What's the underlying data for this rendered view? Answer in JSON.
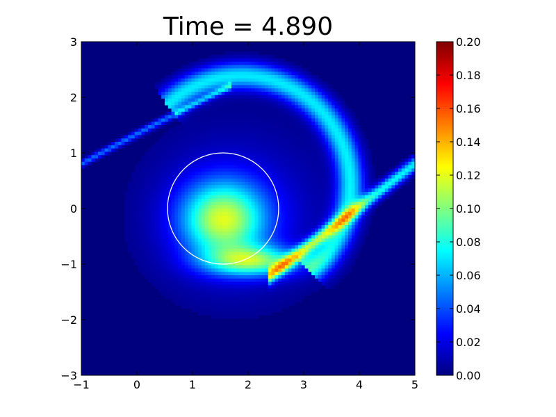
{
  "chart_data": {
    "type": "heatmap",
    "title": "Time = 4.890",
    "xlabel": "",
    "ylabel": "",
    "xlim": [
      -1,
      5
    ],
    "ylim": [
      -3,
      3
    ],
    "xticks": [
      "−1",
      "0",
      "1",
      "2",
      "3",
      "4",
      "5"
    ],
    "yticks": [
      "−3",
      "−2",
      "−1",
      "0",
      "1",
      "2",
      "3"
    ],
    "colormap": "jet",
    "colorbar": {
      "range": [
        0.0,
        0.2
      ],
      "ticks": [
        "0.00",
        "0.02",
        "0.04",
        "0.06",
        "0.08",
        "0.10",
        "0.12",
        "0.14",
        "0.16",
        "0.18",
        "0.20"
      ]
    },
    "circle_overlay": {
      "center": [
        1.55,
        0.0
      ],
      "radius": 1.0,
      "color": "#ffffff"
    },
    "field_features": [
      {
        "name": "core-blob",
        "center": [
          1.6,
          -0.15
        ],
        "peak": 0.1
      },
      {
        "name": "lower-hot-band",
        "center": [
          2.1,
          -0.95
        ],
        "peak": 0.165
      },
      {
        "name": "outer-spiral-arm",
        "path_from": [
          -1.0,
          0.8
        ],
        "path_through": [
          1.7,
          2.3
        ],
        "path_to": [
          3.6,
          -0.2
        ],
        "peak": 0.075
      },
      {
        "name": "tail-filament",
        "path_from": [
          2.8,
          -1.0
        ],
        "path_to": [
          5.0,
          0.8
        ],
        "peak": 0.13
      }
    ]
  }
}
